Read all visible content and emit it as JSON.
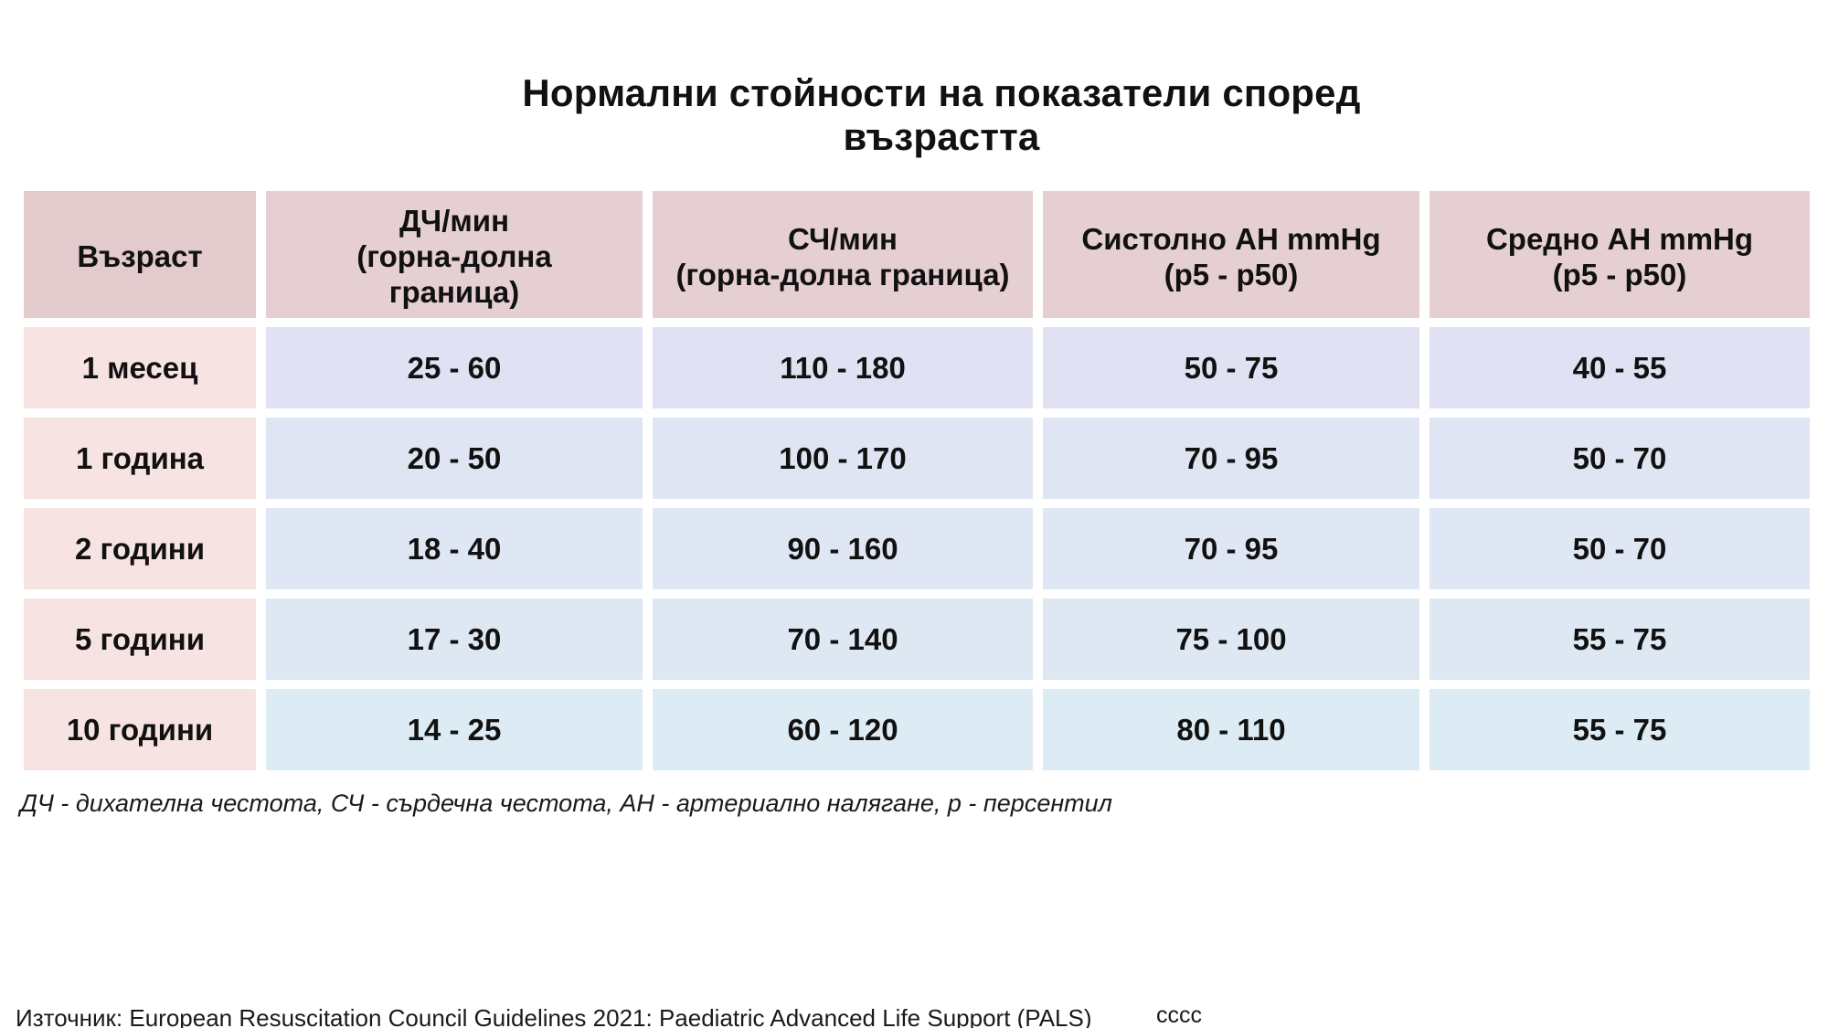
{
  "title": "Нормални стойности на показатели според възрастта",
  "table": {
    "headers": [
      "Възраст",
      "ДЧ/мин\n(горна-долна\nграница)",
      "СЧ/мин\n(горна-долна граница)",
      "Систолно АН mmHg\n(p5 - p50)",
      "Средно АН mmHg\n(p5 - p50)"
    ],
    "rows": [
      [
        "1 месец",
        "25 - 60",
        "110 - 180",
        "50 - 75",
        "40 - 55"
      ],
      [
        "1 година",
        "20 - 50",
        "100 - 170",
        "70 - 95",
        "50 - 70"
      ],
      [
        "2 години",
        "18 - 40",
        "90 - 160",
        "70 - 95",
        "50 - 70"
      ],
      [
        "5 години",
        "17 - 30",
        "70 - 140",
        "75 - 100",
        "55 - 75"
      ],
      [
        "10 години",
        "14 - 25",
        "60 - 120",
        "80 - 110",
        "55 - 75"
      ]
    ]
  },
  "note": "ДЧ - дихателна честота, СЧ - сърдечна честота, АН - артериално налягане, p - персентил",
  "source": "Източник: European Resuscitation Council Guidelines 2021: Paediatric Advanced Life Support (PALS)",
  "extra_text": "сссс",
  "colors": {
    "header_bg": "#e5cfd2",
    "age_bg": "#f7e4e2",
    "value_bg": "#e0e4f3"
  }
}
